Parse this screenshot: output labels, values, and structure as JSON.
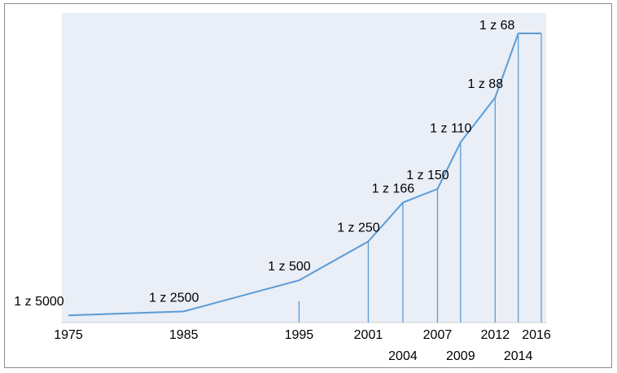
{
  "chart_data": {
    "type": "line",
    "title": "",
    "xlabel": "",
    "ylabel": "",
    "grid": false,
    "legend": "none",
    "colors": {
      "line": "#5b9bd5",
      "plot_area": "#e9eef7",
      "axis": "#d0d0d0"
    },
    "series": [
      {
        "points": [
          {
            "x": 1975,
            "label": "1 z 5000",
            "value": 0.0002
          },
          {
            "x": 1985,
            "label": "1 z 2500",
            "value": 0.0004
          },
          {
            "x": 1995,
            "label": "1 z 500",
            "value": 0.002
          },
          {
            "x": 2001,
            "label": "1 z 250",
            "value": 0.004
          },
          {
            "x": 2004,
            "label": "1 z 166",
            "value": 0.006
          },
          {
            "x": 2007,
            "label": "1 z 150",
            "value": 0.0067
          },
          {
            "x": 2009,
            "label": "1 z 110",
            "value": 0.0091
          },
          {
            "x": 2012,
            "label": "1 z 88",
            "value": 0.0114
          },
          {
            "x": 2014,
            "label": "1 z 68",
            "value": 0.0147
          },
          {
            "x": 2016,
            "label": "",
            "value": 0.0147
          }
        ]
      }
    ],
    "x_ticks": [
      {
        "year": "1975",
        "row": 1
      },
      {
        "year": "1985",
        "row": 1
      },
      {
        "year": "1995",
        "row": 1
      },
      {
        "year": "2001",
        "row": 1
      },
      {
        "year": "2004",
        "row": 2
      },
      {
        "year": "2007",
        "row": 1
      },
      {
        "year": "2009",
        "row": 2
      },
      {
        "year": "2012",
        "row": 1
      },
      {
        "year": "2014",
        "row": 2
      },
      {
        "year": "2016",
        "row": 1
      }
    ],
    "xlim": [
      1975,
      2016
    ],
    "ylim": [
      0,
      0.0153
    ]
  }
}
